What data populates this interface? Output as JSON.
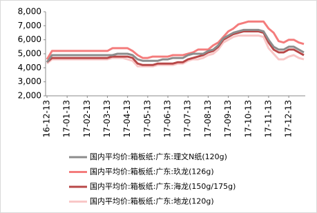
{
  "chart_data": {
    "type": "line",
    "categories": [
      "16-12-13",
      null,
      null,
      null,
      "17-01-13",
      null,
      null,
      null,
      "17-02-13",
      null,
      null,
      null,
      "17-03-13",
      null,
      null,
      null,
      "17-04-13",
      null,
      null,
      null,
      "17-05-13",
      null,
      null,
      null,
      "17-06-13",
      null,
      null,
      null,
      "17-07-13",
      null,
      null,
      null,
      "17-08-13",
      null,
      null,
      null,
      "17-09-13",
      null,
      null,
      null,
      "17-10-13",
      null,
      null,
      null,
      "17-11-13",
      null,
      null,
      null,
      "17-12-13",
      null,
      null,
      null
    ],
    "series": [
      {
        "name": "国内平均价:箱板纸:广东:理文N纸(120g)",
        "color": "#8c8c8c",
        "values": [
          4400,
          4900,
          4900,
          4900,
          4900,
          4900,
          4900,
          4900,
          4900,
          4900,
          4900,
          4900,
          4900,
          4900,
          5000,
          5000,
          5000,
          4900,
          4600,
          4500,
          4500,
          4500,
          4500,
          4600,
          4600,
          4700,
          4700,
          4700,
          4900,
          5000,
          5000,
          5000,
          5200,
          5300,
          5600,
          6100,
          6300,
          6500,
          6600,
          6700,
          6700,
          6700,
          6700,
          6600,
          6000,
          5500,
          5300,
          5300,
          5500,
          5500,
          5300,
          5100
        ]
      },
      {
        "name": "国内平均价:箱板纸:广东:玖龙(126g)",
        "color": "#f47c7c",
        "values": [
          4600,
          5200,
          5200,
          5200,
          5200,
          5200,
          5200,
          5200,
          5200,
          5200,
          5200,
          5200,
          5200,
          5400,
          5400,
          5400,
          5400,
          5200,
          4900,
          4700,
          4700,
          4800,
          4800,
          4800,
          4800,
          4900,
          4900,
          4900,
          5000,
          5100,
          5300,
          5300,
          5300,
          5600,
          5800,
          6200,
          6600,
          6800,
          7100,
          7200,
          7300,
          7300,
          7300,
          7300,
          6800,
          6500,
          5900,
          5800,
          6000,
          6000,
          5800,
          5700
        ]
      },
      {
        "name": "国内平均价:箱板纸:广东:海龙(150g/175g)",
        "color": "#b84848",
        "values": [
          4400,
          4700,
          4700,
          4700,
          4700,
          4700,
          4700,
          4700,
          4700,
          4700,
          4700,
          4700,
          4700,
          4800,
          4800,
          4800,
          4800,
          4700,
          4300,
          4200,
          4200,
          4200,
          4300,
          4300,
          4300,
          4300,
          4400,
          4400,
          4600,
          4700,
          4800,
          4900,
          5100,
          5200,
          5500,
          6000,
          6200,
          6400,
          6500,
          6600,
          6600,
          6600,
          6600,
          6500,
          5800,
          5300,
          5100,
          5100,
          5300,
          5300,
          5100,
          4900
        ]
      },
      {
        "name": "国内平均价:箱板纸:广东:地龙(120g)",
        "color": "#f9c7c7",
        "values": [
          4300,
          4600,
          4600,
          4600,
          4600,
          4600,
          4600,
          4600,
          4600,
          4600,
          4600,
          4600,
          4600,
          4700,
          4700,
          4700,
          4600,
          4500,
          4100,
          4100,
          4100,
          4100,
          4200,
          4200,
          4200,
          4200,
          4300,
          4300,
          4500,
          4600,
          4600,
          4700,
          4900,
          5000,
          5300,
          5800,
          6000,
          6200,
          6300,
          6300,
          6300,
          6300,
          6300,
          6200,
          5400,
          5000,
          4600,
          4600,
          4800,
          4900,
          4700,
          4600
        ]
      }
    ],
    "ylim": [
      2000,
      8000
    ],
    "yticks": [
      {
        "value": 2000,
        "label": "2,000"
      },
      {
        "value": 3000,
        "label": "3,000"
      },
      {
        "value": 4000,
        "label": "4,000"
      },
      {
        "value": 5000,
        "label": "5,000"
      },
      {
        "value": 6000,
        "label": "6,000"
      },
      {
        "value": 7000,
        "label": "7,000"
      },
      {
        "value": 8000,
        "label": "8,000"
      }
    ]
  }
}
